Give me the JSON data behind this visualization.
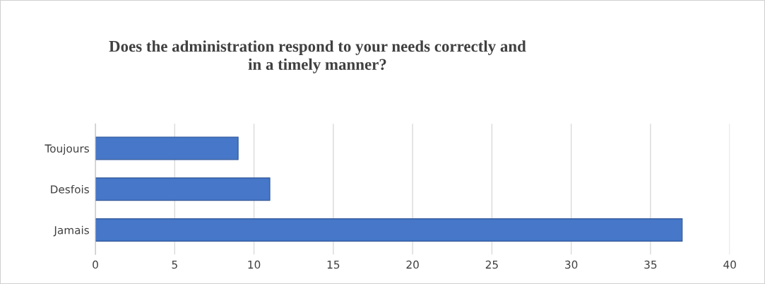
{
  "chart_data": {
    "type": "bar",
    "orientation": "horizontal",
    "title": "Does the administration respond to your needs correctly and\nin a timely manner?",
    "categories": [
      "Toujours",
      "Desfois",
      "Jamais"
    ],
    "values": [
      9,
      11,
      37
    ],
    "color": "#4677c8",
    "xlim": [
      0,
      40
    ],
    "xticks": [
      0,
      5,
      10,
      15,
      20,
      25,
      30,
      35,
      40
    ],
    "grid": "x"
  }
}
